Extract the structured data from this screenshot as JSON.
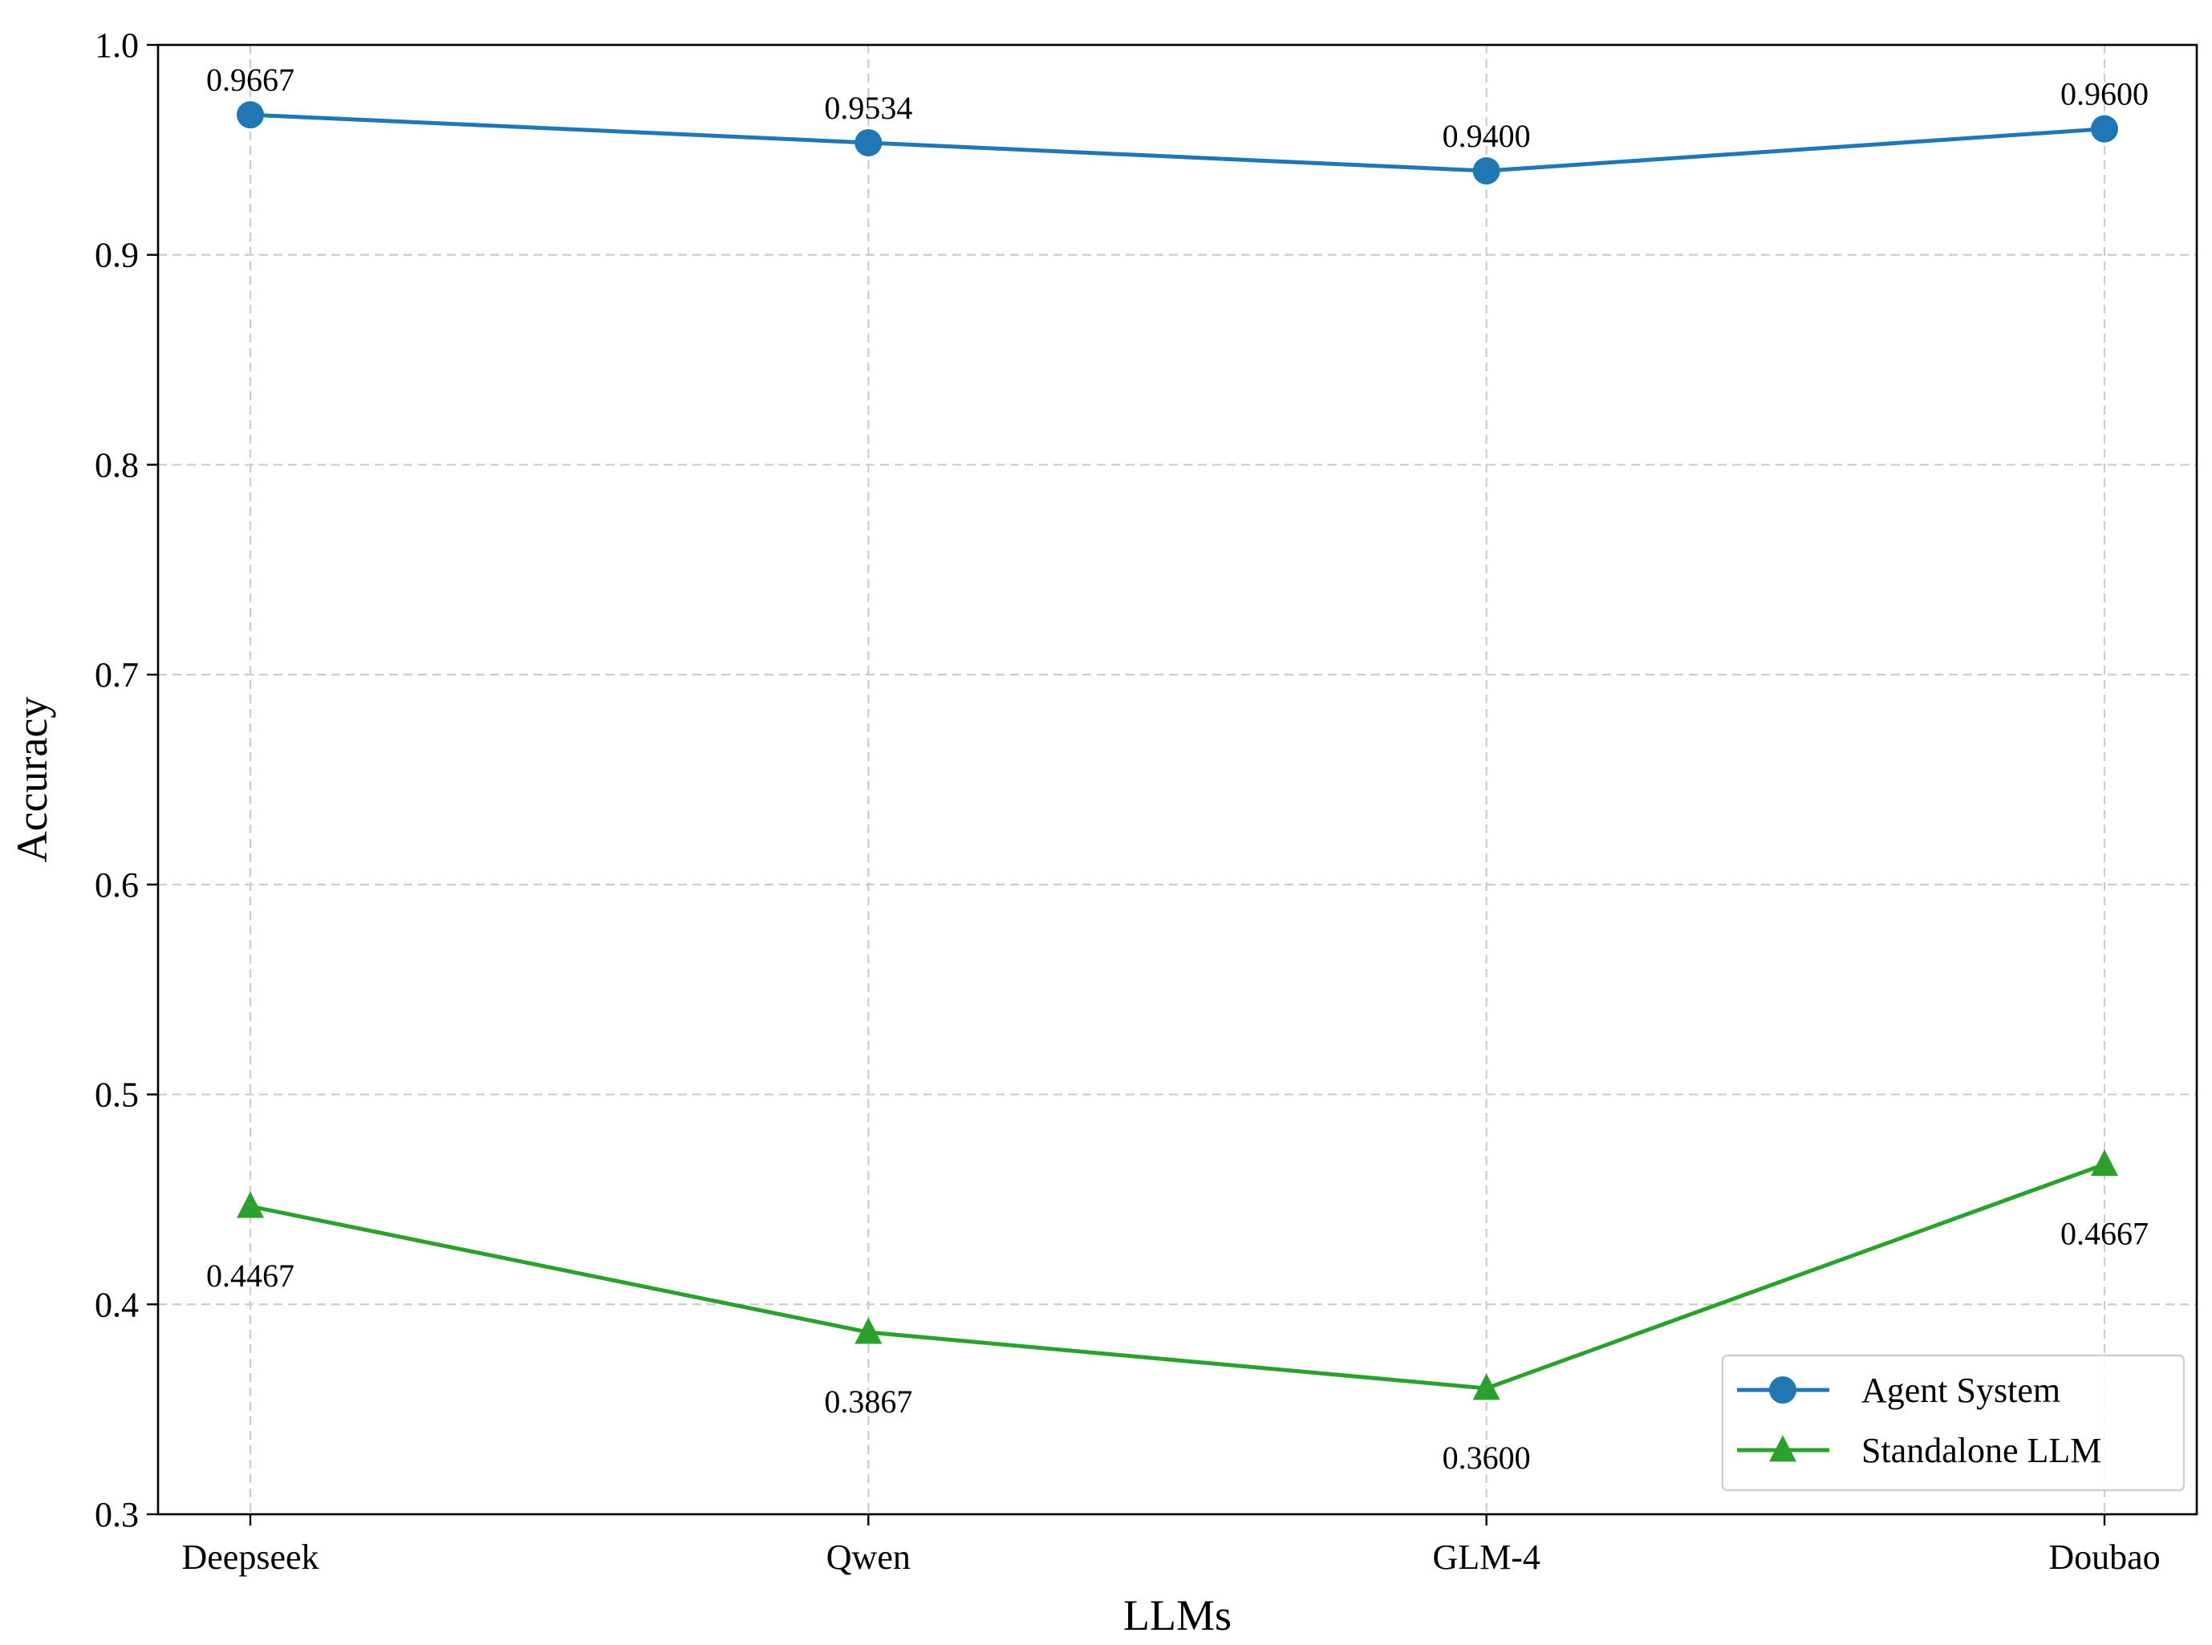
{
  "chart_data": {
    "type": "line",
    "title": "",
    "xlabel": "LLMs",
    "ylabel": "Accuracy",
    "categories": [
      "Deepseek",
      "Qwen",
      "GLM-4",
      "Doubao"
    ],
    "ylim": [
      0.3,
      1.0
    ],
    "yticks": [
      0.3,
      0.4,
      0.5,
      0.6,
      0.7,
      0.8,
      0.9,
      1.0
    ],
    "ytick_labels": [
      "0.3",
      "0.4",
      "0.5",
      "0.6",
      "0.7",
      "0.8",
      "0.9",
      "1.0"
    ],
    "grid": true,
    "legend_position": "lower-right",
    "series": [
      {
        "name": "Agent System",
        "values": [
          0.9667,
          0.9534,
          0.94,
          0.96
        ],
        "value_labels": [
          "0.9667",
          "0.9534",
          "0.9400",
          "0.9600"
        ],
        "color": "#1f77b4",
        "marker": "circle",
        "label_position": "above"
      },
      {
        "name": "Standalone LLM",
        "values": [
          0.4467,
          0.3867,
          0.36,
          0.4667
        ],
        "value_labels": [
          "0.4467",
          "0.3867",
          "0.3600",
          "0.4667"
        ],
        "color": "#2ca02c",
        "marker": "triangle",
        "label_position": "below"
      }
    ]
  }
}
